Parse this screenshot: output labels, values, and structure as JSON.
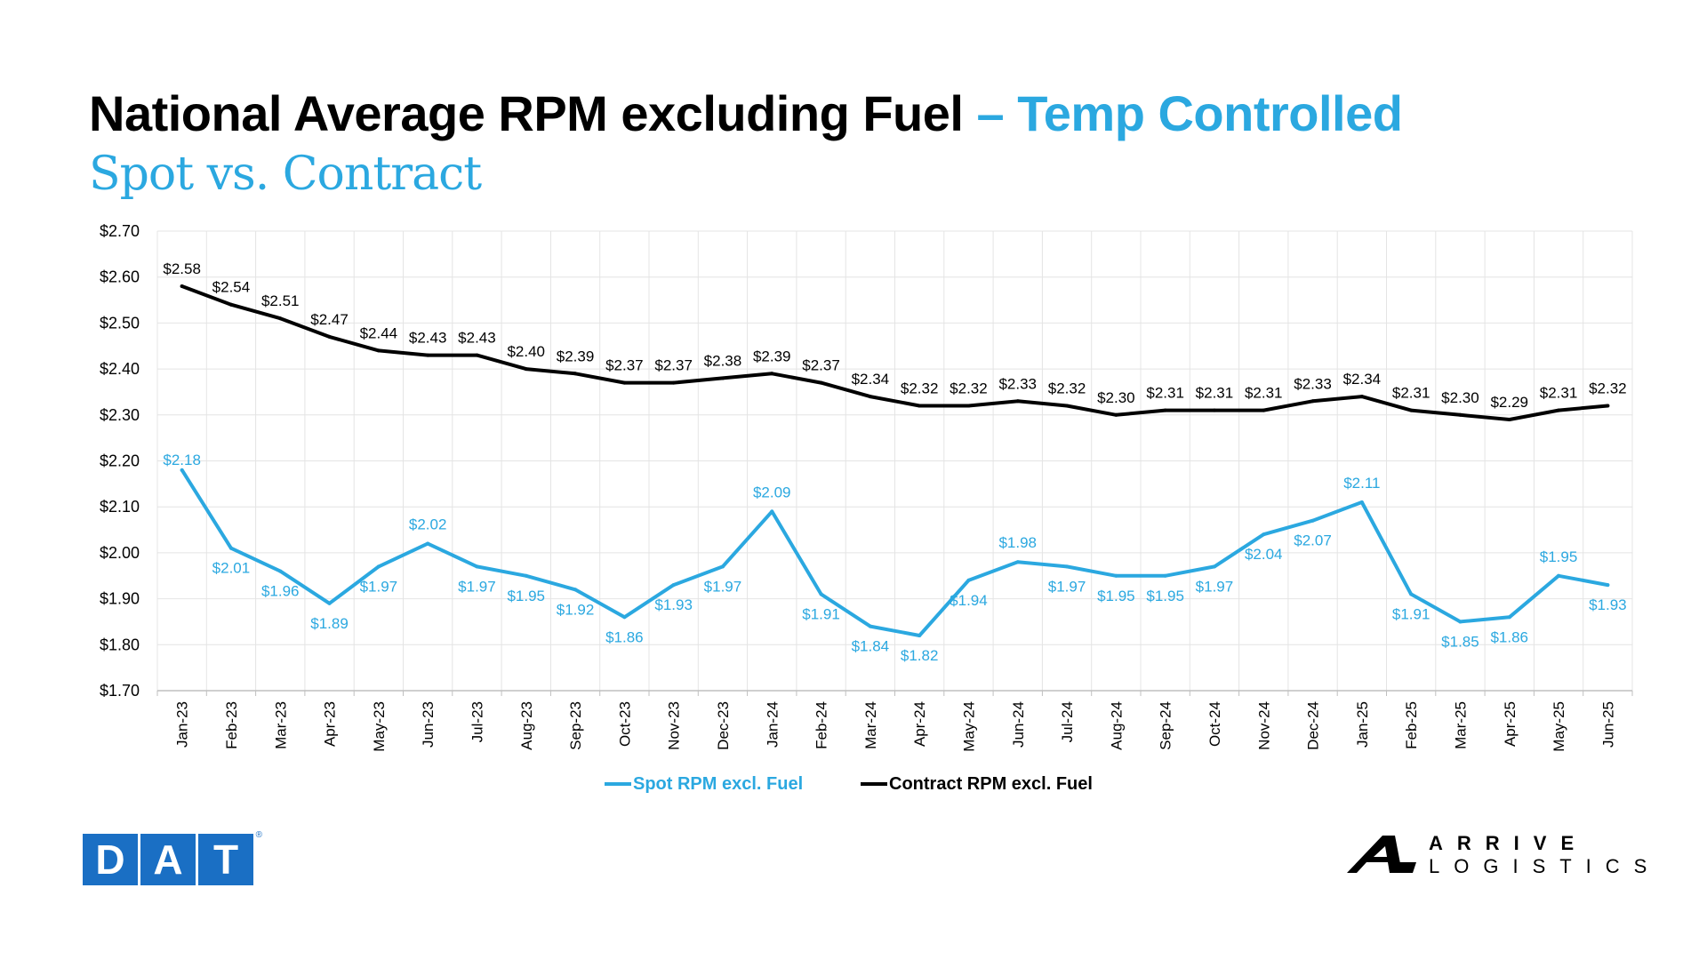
{
  "header": {
    "title_main": "National Average RPM excluding Fuel",
    "title_accent": "– Temp Controlled",
    "subtitle": "Spot vs. Contract"
  },
  "logos": {
    "dat_letters": [
      "D",
      "A",
      "T"
    ],
    "dat_reg": "®",
    "arrive": "ARRIVE",
    "logistics": "LOGISTICS"
  },
  "colors": {
    "spot": "#2ba8e0",
    "contract": "#000000",
    "grid": "#e4e4e4",
    "axis": "#bfbfbf",
    "dat_blue": "#1a6fc4"
  },
  "chart_data": {
    "type": "line",
    "title": "",
    "xlabel": "",
    "ylabel": "",
    "ylim": [
      1.7,
      2.7
    ],
    "y_ticks": [
      1.7,
      1.8,
      1.9,
      2.0,
      2.1,
      2.2,
      2.3,
      2.4,
      2.5,
      2.6,
      2.7
    ],
    "y_tick_labels": [
      "$1.70",
      "$1.80",
      "$1.90",
      "$2.00",
      "$2.10",
      "$2.20",
      "$2.30",
      "$2.40",
      "$2.50",
      "$2.60",
      "$2.70"
    ],
    "grid": true,
    "legend_position": "bottom-center",
    "categories": [
      "Jan-23",
      "Feb-23",
      "Mar-23",
      "Apr-23",
      "May-23",
      "Jun-23",
      "Jul-23",
      "Aug-23",
      "Sep-23",
      "Oct-23",
      "Nov-23",
      "Dec-23",
      "Jan-24",
      "Feb-24",
      "Mar-24",
      "Apr-24",
      "May-24",
      "Jun-24",
      "Jul-24",
      "Aug-24",
      "Sep-24",
      "Oct-24",
      "Nov-24",
      "Dec-24",
      "Jan-25",
      "Feb-25",
      "Mar-25",
      "Apr-25",
      "May-25",
      "Jun-25"
    ],
    "series": [
      {
        "name": "Spot RPM excl. Fuel",
        "values": [
          2.18,
          2.01,
          1.96,
          1.89,
          1.97,
          2.02,
          1.97,
          1.95,
          1.92,
          1.86,
          1.93,
          1.97,
          2.09,
          1.91,
          1.84,
          1.82,
          1.94,
          1.98,
          1.97,
          1.95,
          1.95,
          1.97,
          2.04,
          2.07,
          2.11,
          1.91,
          1.85,
          1.86,
          1.95,
          1.93
        ],
        "labels": [
          "$2.18",
          "$2.01",
          "$1.96",
          "$1.89",
          "$1.97",
          "$2.02",
          "$1.97",
          "$1.95",
          "$1.92",
          "$1.86",
          "$1.93",
          "$1.97",
          "$2.09",
          "$1.91",
          "$1.84",
          "$1.82",
          "$1.94",
          "$1.98",
          "$1.97",
          "$1.95",
          "$1.95",
          "$1.97",
          "$2.04",
          "$2.07",
          "$2.11",
          "$1.91",
          "$1.85",
          "$1.86",
          "$1.95",
          "$1.93"
        ]
      },
      {
        "name": "Contract RPM excl. Fuel",
        "values": [
          2.58,
          2.54,
          2.51,
          2.47,
          2.44,
          2.43,
          2.43,
          2.4,
          2.39,
          2.37,
          2.37,
          2.38,
          2.39,
          2.37,
          2.34,
          2.32,
          2.32,
          2.33,
          2.32,
          2.3,
          2.31,
          2.31,
          2.31,
          2.33,
          2.34,
          2.31,
          2.3,
          2.29,
          2.31,
          2.32
        ],
        "labels": [
          "$2.58",
          "$2.54",
          "$2.51",
          "$2.47",
          "$2.44",
          "$2.43",
          "$2.43",
          "$2.40",
          "$2.39",
          "$2.37",
          "$2.37",
          "$2.38",
          "$2.39",
          "$2.37",
          "$2.34",
          "$2.32",
          "$2.32",
          "$2.33",
          "$2.32",
          "$2.30",
          "$2.31",
          "$2.31",
          "$2.31",
          "$2.33",
          "$2.34",
          "$2.31",
          "$2.30",
          "$2.29",
          "$2.31",
          "$2.32"
        ]
      }
    ]
  }
}
